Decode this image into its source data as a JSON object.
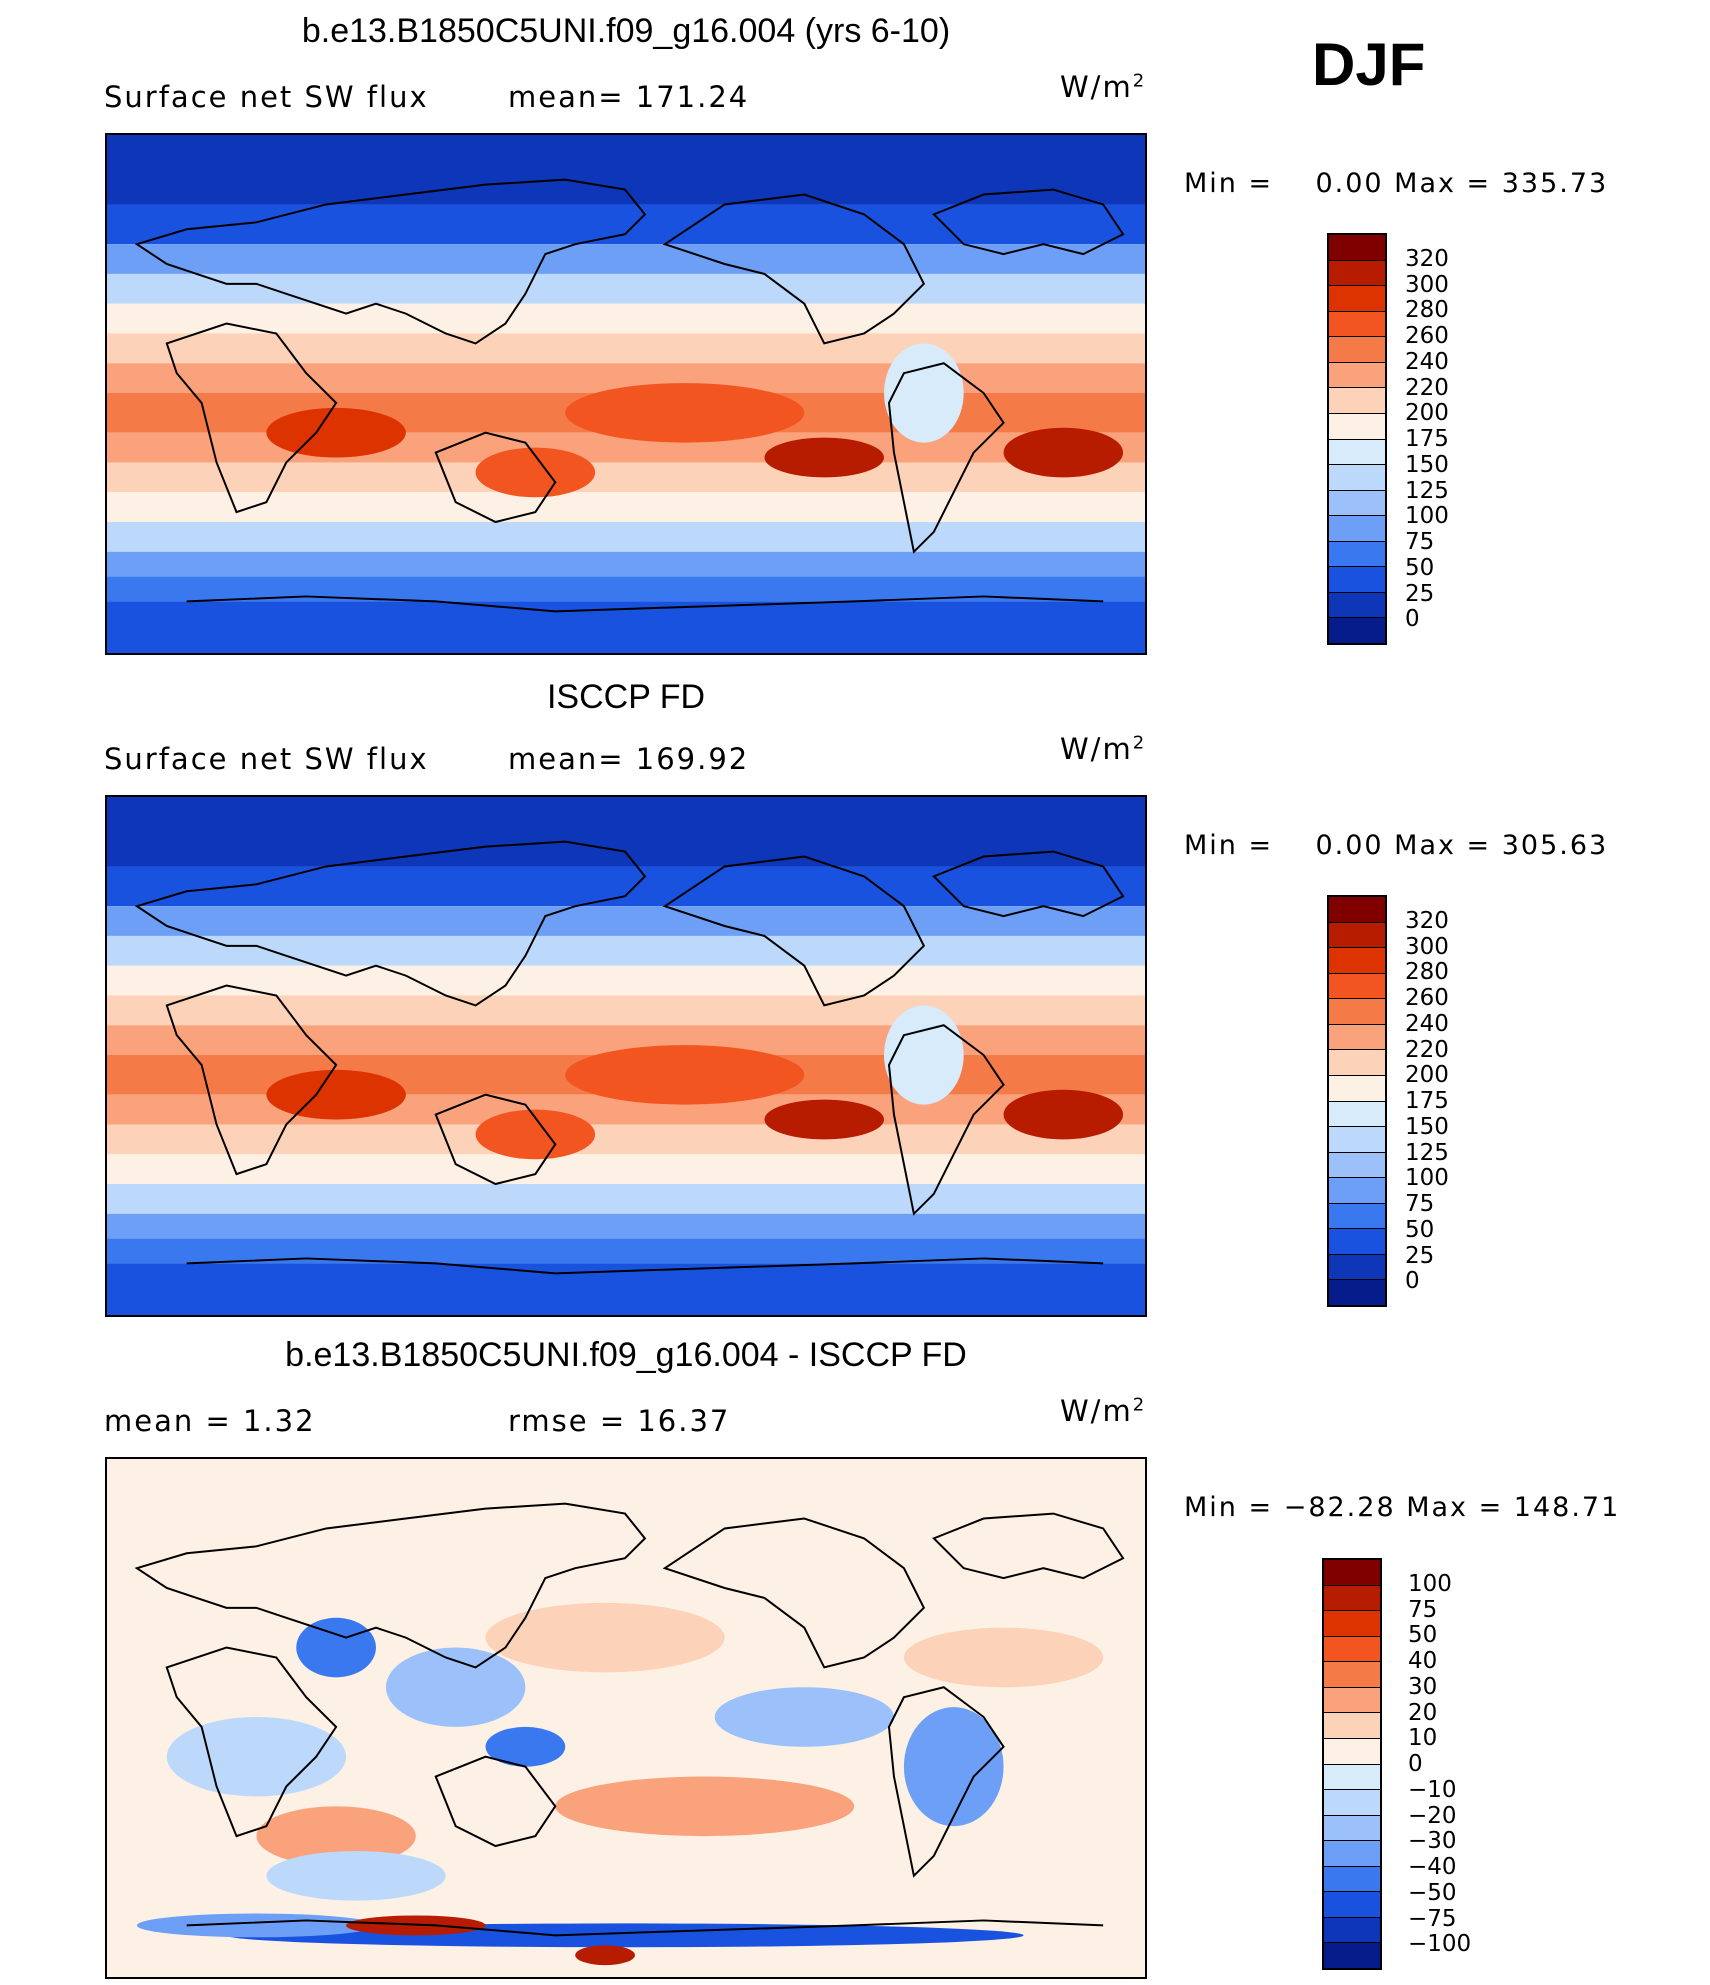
{
  "season": "DJF",
  "panels": [
    {
      "title": "b.e13.B1850C5UNI.f09_g16.004 (yrs 6-10)",
      "left_label": "Surface net SW flux",
      "mid_label": "mean= 171.24",
      "units": "W/m",
      "units_exp": "2",
      "minmax": "Min =    0.00 Max = 335.73",
      "colorbar_labels": [
        "320",
        "300",
        "280",
        "260",
        "240",
        "220",
        "200",
        "175",
        "150",
        "125",
        "100",
        "75",
        "50",
        "25",
        "0"
      ],
      "colorbar_colors": [
        "#800000",
        "#b71c00",
        "#dd3300",
        "#f25520",
        "#f47a48",
        "#f9a27c",
        "#fcd2b8",
        "#fdf0e4",
        "#d7ebfa",
        "#bcd8fb",
        "#9cc1fa",
        "#6c9ff5",
        "#3a78f0",
        "#1a52e0",
        "#0d36b8",
        "#061c8a"
      ],
      "field_type": "absolute"
    },
    {
      "title": "ISCCP FD",
      "left_label": "Surface net SW flux",
      "mid_label": "mean= 169.92",
      "units": "W/m",
      "units_exp": "2",
      "minmax": "Min =    0.00 Max = 305.63",
      "colorbar_labels": [
        "320",
        "300",
        "280",
        "260",
        "240",
        "220",
        "200",
        "175",
        "150",
        "125",
        "100",
        "75",
        "50",
        "25",
        "0"
      ],
      "colorbar_colors": [
        "#800000",
        "#b71c00",
        "#dd3300",
        "#f25520",
        "#f47a48",
        "#f9a27c",
        "#fcd2b8",
        "#fdf0e4",
        "#d7ebfa",
        "#bcd8fb",
        "#9cc1fa",
        "#6c9ff5",
        "#3a78f0",
        "#1a52e0",
        "#0d36b8",
        "#061c8a"
      ],
      "field_type": "absolute"
    },
    {
      "title": "b.e13.B1850C5UNI.f09_g16.004 - ISCCP FD",
      "left_label": "mean =    1.32",
      "mid_label": "rmse =    16.37",
      "units": "W/m",
      "units_exp": "2",
      "minmax": "Min = −82.28 Max = 148.71",
      "colorbar_labels": [
        "100",
        "75",
        "50",
        "40",
        "30",
        "20",
        "10",
        "0",
        "−10",
        "−20",
        "−30",
        "−40",
        "−50",
        "−75",
        "−100"
      ],
      "colorbar_colors": [
        "#800000",
        "#b71c00",
        "#dd3300",
        "#f25520",
        "#f47a48",
        "#f9a27c",
        "#fcd2b8",
        "#fdf0e4",
        "#d7ebfa",
        "#bcd8fb",
        "#9cc1fa",
        "#6c9ff5",
        "#3a78f0",
        "#1a52e0",
        "#0d36b8",
        "#061c8a"
      ],
      "field_type": "difference"
    }
  ]
}
